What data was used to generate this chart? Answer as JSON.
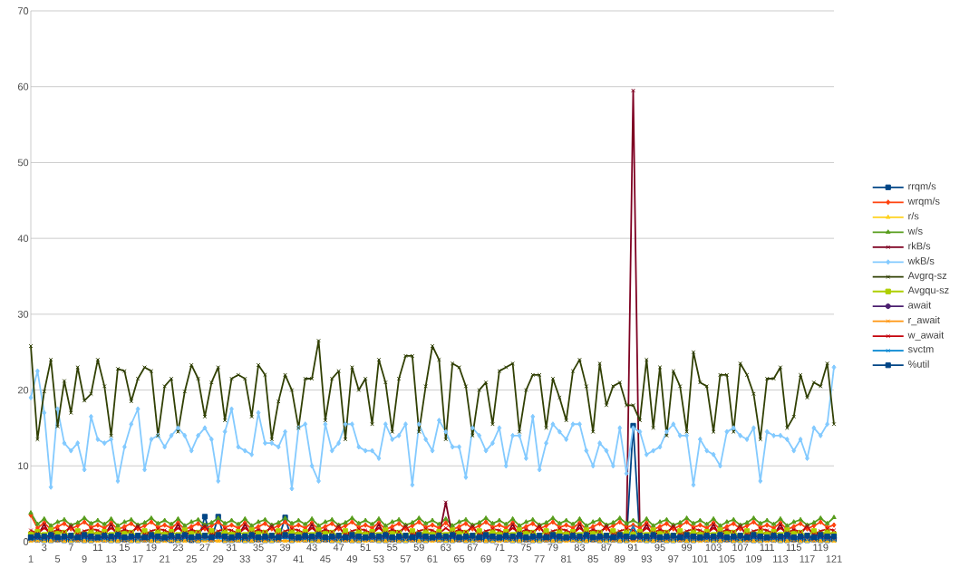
{
  "chart_data": {
    "type": "line",
    "legend": "right",
    "grid": "y",
    "ylim": [
      0,
      70
    ],
    "yticks": [
      0,
      10,
      20,
      30,
      40,
      50,
      60,
      70
    ],
    "categories": [
      "1",
      null,
      "3",
      null,
      "5",
      null,
      "7",
      null,
      "9",
      null,
      "11",
      null,
      "13",
      null,
      "15",
      null,
      "17",
      null,
      "19",
      null,
      "21",
      null,
      "23",
      null,
      "25",
      null,
      "27",
      null,
      "29",
      null,
      "31",
      null,
      "33",
      null,
      "35",
      null,
      "37",
      null,
      "39",
      null,
      "41",
      null,
      "43",
      null,
      "45",
      null,
      "47",
      null,
      "49",
      null,
      "51",
      null,
      "53",
      null,
      "55",
      null,
      "57",
      null,
      "59",
      null,
      "61",
      null,
      "63",
      null,
      "65",
      null,
      "67",
      null,
      "69",
      null,
      "71",
      null,
      "73",
      null,
      "75",
      null,
      "77",
      null,
      "79",
      null,
      "81",
      null,
      "83",
      null,
      "85",
      null,
      "87",
      null,
      "89",
      null,
      "91",
      null,
      "93",
      null,
      "95",
      null,
      "97",
      null,
      "99",
      null,
      "101",
      null,
      "103",
      null,
      "105",
      null,
      "107",
      null,
      "109",
      null,
      "111",
      null,
      "113",
      null,
      "115",
      null,
      "117",
      null,
      "119",
      null,
      "121"
    ],
    "series": [
      {
        "name": "rrqm/s",
        "color": "#004586",
        "marker": "square",
        "values": [
          0.5,
          0.3,
          0.2,
          0.2,
          0.3,
          0.2,
          0.2,
          0.3,
          0.2,
          0.2,
          0.5,
          0.3,
          0.2,
          0.2,
          0.3,
          0.2,
          0.2,
          0.3,
          0.2,
          0.2,
          0.3,
          0.2,
          0.2,
          0.3,
          0.2,
          0.2,
          3.3,
          0.3,
          3.3,
          0.2,
          0.2,
          0.3,
          0.2,
          0.2,
          0.3,
          0.2,
          0.2,
          0.3,
          3.2,
          0.2,
          0.5,
          0.3,
          0.2,
          0.2,
          0.3,
          0.2,
          0.2,
          0.3,
          0.2,
          0.2,
          0.5,
          0.3,
          0.2,
          0.2,
          0.3,
          0.2,
          0.2,
          0.3,
          0.2,
          0.2,
          0.5,
          0.3,
          0.2,
          0.2,
          0.3,
          0.2,
          0.2,
          0.3,
          0.2,
          0.2,
          0.5,
          0.3,
          0.2,
          0.2,
          0.3,
          0.2,
          0.2,
          0.3,
          0.2,
          0.2,
          0.5,
          0.3,
          0.2,
          0.2,
          0.3,
          0.2,
          0.2,
          0.3,
          0.2,
          0.2,
          15.3,
          0.3,
          0.2,
          0.2,
          0.3,
          0.2,
          0.2,
          0.3,
          0.2,
          0.2,
          0.5,
          0.3,
          0.2,
          0.2,
          0.3,
          0.2,
          0.2,
          0.3,
          0.2,
          0.2,
          0.5,
          0.3,
          0.2,
          0.2,
          0.3,
          0.2,
          0.2,
          0.3,
          0.2,
          0.2,
          0.3
        ]
      },
      {
        "name": "wrqm/s",
        "color": "#ff420e",
        "marker": "diamond",
        "values": [
          3.5,
          1.8,
          2.5,
          1.6,
          2.0,
          2.4,
          1.7,
          2.1,
          2.6,
          1.9,
          2.2,
          1.8,
          2.5,
          1.6,
          2.0,
          2.4,
          1.7,
          2.1,
          2.6,
          1.9,
          2.2,
          1.8,
          2.5,
          1.6,
          2.0,
          2.4,
          1.7,
          2.1,
          2.6,
          1.9,
          2.2,
          1.8,
          2.5,
          1.6,
          2.0,
          2.4,
          1.7,
          2.1,
          2.6,
          1.9,
          2.2,
          1.8,
          2.5,
          1.6,
          2.0,
          2.4,
          1.7,
          2.1,
          2.6,
          1.9,
          2.2,
          1.8,
          2.5,
          1.6,
          2.0,
          2.4,
          1.7,
          2.1,
          2.6,
          1.9,
          2.2,
          1.8,
          2.5,
          1.6,
          2.0,
          2.4,
          1.7,
          2.1,
          2.6,
          1.9,
          2.2,
          1.8,
          2.5,
          1.6,
          2.0,
          2.4,
          1.7,
          2.1,
          2.6,
          1.9,
          2.2,
          1.8,
          2.5,
          1.6,
          2.0,
          2.4,
          1.7,
          2.1,
          2.6,
          1.9,
          2.2,
          1.8,
          2.5,
          1.6,
          2.0,
          2.4,
          1.7,
          2.1,
          2.6,
          1.9,
          2.2,
          1.8,
          2.5,
          1.6,
          2.0,
          2.4,
          1.7,
          2.1,
          2.6,
          1.9,
          2.2,
          1.8,
          2.5,
          1.6,
          2.0,
          2.4,
          1.7,
          2.1,
          2.6,
          1.9,
          2.2
        ]
      },
      {
        "name": "r/s",
        "color": "#ffd320",
        "marker": "triangle",
        "values": [
          0.1,
          0.2,
          0.1,
          0.1,
          0.3,
          0.1,
          0.1,
          0.2,
          0.1,
          0.1,
          0.1,
          0.2,
          0.1,
          0.1,
          0.3,
          0.1,
          0.1,
          0.2,
          0.1,
          0.1,
          0.1,
          0.2,
          0.1,
          0.1,
          0.3,
          0.1,
          0.1,
          0.2,
          0.1,
          0.1,
          0.1,
          0.2,
          0.1,
          0.1,
          0.3,
          0.1,
          0.1,
          0.2,
          0.1,
          0.1,
          0.1,
          0.2,
          0.1,
          0.1,
          0.3,
          0.1,
          0.1,
          0.2,
          0.1,
          0.1,
          0.1,
          0.2,
          0.1,
          0.1,
          0.3,
          0.1,
          0.1,
          0.2,
          0.1,
          0.1,
          0.1,
          0.2,
          0.1,
          0.1,
          0.3,
          0.1,
          0.1,
          0.2,
          0.1,
          0.1,
          0.1,
          0.2,
          0.1,
          0.1,
          0.3,
          0.1,
          0.1,
          0.2,
          0.1,
          0.1,
          0.1,
          0.2,
          0.1,
          0.1,
          0.3,
          0.1,
          0.1,
          0.2,
          0.1,
          0.1,
          0.1,
          0.2,
          0.1,
          0.1,
          0.3,
          0.1,
          0.1,
          0.2,
          0.1,
          0.1,
          0.1,
          0.2,
          0.1,
          0.1,
          0.3,
          0.1,
          0.1,
          0.2,
          0.1,
          0.1,
          0.1,
          0.2,
          0.1,
          0.1,
          0.3,
          0.1,
          0.1,
          0.2,
          0.1,
          0.1,
          0.1
        ]
      },
      {
        "name": "w/s",
        "color": "#579d1c",
        "marker": "triangle",
        "values": [
          3.8,
          2.3,
          3.0,
          2.1,
          2.6,
          2.9,
          2.2,
          2.5,
          3.1,
          2.4,
          2.8,
          2.3,
          3.0,
          2.1,
          2.6,
          2.9,
          2.2,
          2.5,
          3.1,
          2.4,
          2.8,
          2.3,
          3.0,
          2.1,
          2.6,
          2.9,
          2.2,
          2.5,
          3.1,
          2.4,
          2.8,
          2.3,
          3.0,
          2.1,
          2.6,
          2.9,
          2.2,
          2.5,
          3.1,
          2.4,
          2.8,
          2.3,
          3.0,
          2.1,
          2.6,
          2.9,
          2.2,
          2.5,
          3.1,
          2.4,
          2.8,
          2.3,
          3.0,
          2.1,
          2.6,
          2.9,
          2.2,
          2.5,
          3.1,
          2.4,
          2.8,
          2.3,
          3.0,
          2.1,
          2.6,
          2.9,
          2.2,
          2.5,
          3.1,
          2.4,
          2.8,
          2.3,
          3.0,
          2.1,
          2.6,
          2.9,
          2.2,
          2.5,
          3.1,
          2.4,
          2.8,
          2.3,
          3.0,
          2.1,
          2.6,
          2.9,
          2.2,
          2.5,
          3.1,
          2.4,
          2.8,
          2.3,
          3.0,
          2.1,
          2.6,
          2.9,
          2.2,
          2.5,
          3.1,
          2.4,
          2.8,
          2.3,
          3.0,
          2.1,
          2.6,
          2.9,
          2.2,
          2.5,
          3.1,
          2.4,
          2.8,
          2.3,
          3.0,
          2.1,
          2.6,
          2.9,
          2.2,
          2.5,
          3.1,
          2.4,
          3.2
        ]
      },
      {
        "name": "rkB/s",
        "color": "#7e0021",
        "marker": "cross",
        "values": [
          1.2,
          0.8,
          2.3,
          0.6,
          1.5,
          1.0,
          2.1,
          0.7,
          1.3,
          0.9,
          1.2,
          0.8,
          2.3,
          0.6,
          1.5,
          1.0,
          2.1,
          0.7,
          1.3,
          0.9,
          1.2,
          0.8,
          2.3,
          0.6,
          1.5,
          1.0,
          2.1,
          0.7,
          1.3,
          0.9,
          1.2,
          0.8,
          2.3,
          0.6,
          1.5,
          1.0,
          2.1,
          0.7,
          1.3,
          0.9,
          1.2,
          0.8,
          2.3,
          0.6,
          1.5,
          1.0,
          2.1,
          0.7,
          1.3,
          0.9,
          1.2,
          0.8,
          2.3,
          0.6,
          1.5,
          1.0,
          2.1,
          0.7,
          1.3,
          0.9,
          1.2,
          0.8,
          5.2,
          0.6,
          1.5,
          1.0,
          2.1,
          0.7,
          1.3,
          0.9,
          1.2,
          0.8,
          2.3,
          0.6,
          1.5,
          1.0,
          2.1,
          0.7,
          1.3,
          0.9,
          1.2,
          0.8,
          2.3,
          0.6,
          1.5,
          1.0,
          2.1,
          0.7,
          1.3,
          0.9,
          59.5,
          0.8,
          2.3,
          0.6,
          1.5,
          1.0,
          2.1,
          0.7,
          1.3,
          0.9,
          1.2,
          0.8,
          2.3,
          0.6,
          1.5,
          1.0,
          2.1,
          0.7,
          1.3,
          0.9,
          1.2,
          0.8,
          2.3,
          0.6,
          1.5,
          1.0,
          2.1,
          0.7,
          1.3,
          0.9,
          1.2
        ]
      },
      {
        "name": "wkB/s",
        "color": "#83caff",
        "marker": "diamond",
        "values": [
          19,
          22.5,
          17,
          7.2,
          17.5,
          13,
          12,
          13,
          9.5,
          16.5,
          13.5,
          13,
          13.5,
          8,
          12.5,
          15.5,
          17.5,
          9.5,
          13.5,
          14,
          12.5,
          14,
          15,
          14,
          12,
          14,
          15,
          13.5,
          8,
          14.5,
          17.5,
          12.5,
          12,
          11.5,
          17,
          13,
          13,
          12.5,
          14.5,
          7,
          15,
          15.5,
          10,
          8,
          15.5,
          12,
          13,
          15.5,
          15.5,
          12.5,
          12,
          12,
          11,
          15.5,
          13.5,
          14,
          15.5,
          7.5,
          15.5,
          13.5,
          12,
          16,
          14.5,
          12.5,
          12.5,
          8.5,
          15,
          14,
          12,
          13,
          15,
          10,
          14,
          14,
          11,
          16.5,
          9.5,
          13,
          15.5,
          14.5,
          13.5,
          15.5,
          15.5,
          12,
          10,
          13,
          12,
          10,
          15,
          9,
          15,
          14.5,
          11.5,
          12,
          12.5,
          14.5,
          15.5,
          14,
          14,
          7.5,
          13.5,
          12,
          11.5,
          10,
          14.5,
          15,
          14,
          13.5,
          15,
          8,
          14.5,
          14,
          14,
          13.5,
          12,
          13.5,
          11,
          15,
          14,
          15.5,
          23
        ]
      },
      {
        "name": "Avgrq-sz",
        "color": "#314004",
        "marker": "cross",
        "values": [
          25.8,
          13.5,
          19.8,
          24,
          15.2,
          21.2,
          17,
          23,
          18.6,
          19.5,
          24,
          20.5,
          14,
          22.8,
          22.5,
          18.5,
          21.5,
          23,
          22.5,
          14,
          20.5,
          21.5,
          14.5,
          19.8,
          23.3,
          21.5,
          16.5,
          21,
          23,
          16,
          21.5,
          22,
          21.5,
          16.5,
          23.3,
          22,
          13.5,
          18.5,
          22,
          20,
          15,
          21.5,
          21.5,
          26.5,
          16,
          21.5,
          22.5,
          13.5,
          23,
          20,
          21.5,
          15.5,
          24,
          21,
          14.5,
          21.5,
          24.5,
          24.5,
          14.5,
          20.5,
          25.8,
          24,
          13.5,
          23.5,
          23,
          20.5,
          14,
          20,
          21,
          15.5,
          22.5,
          23,
          23.5,
          14.5,
          20,
          22,
          22,
          15,
          21.5,
          19,
          16,
          22.5,
          24,
          20.5,
          14.5,
          23.5,
          18,
          20.5,
          21,
          18,
          18,
          16,
          24,
          15,
          23,
          14,
          22.5,
          20.5,
          14.5,
          25,
          21,
          20.5,
          14.5,
          22,
          22,
          14.5,
          23.5,
          22,
          19.5,
          13.5,
          21.5,
          21.5,
          23,
          15,
          16.5,
          22,
          19,
          21,
          20.5,
          23.5,
          15.5
        ]
      },
      {
        "name": "Avgqu-sz",
        "color": "#aecf00",
        "marker": "square",
        "values": [
          1.0,
          1.3,
          0.9,
          1.5,
          1.1,
          1.2,
          0.8,
          1.4,
          1.0,
          1.3,
          1.0,
          1.3,
          0.9,
          1.5,
          1.1,
          1.2,
          0.8,
          1.4,
          1.0,
          1.3,
          1.0,
          1.3,
          0.9,
          1.5,
          1.1,
          1.2,
          0.8,
          1.4,
          1.0,
          1.3,
          1.0,
          1.3,
          0.9,
          1.5,
          1.1,
          1.2,
          0.8,
          1.4,
          1.0,
          1.3,
          1.0,
          1.3,
          0.9,
          1.5,
          1.1,
          1.2,
          0.8,
          1.4,
          1.0,
          1.3,
          1.0,
          1.3,
          0.9,
          1.5,
          1.1,
          1.2,
          0.8,
          1.4,
          1.0,
          1.3,
          1.0,
          1.3,
          0.9,
          1.5,
          1.1,
          1.2,
          0.8,
          1.4,
          1.0,
          1.3,
          1.0,
          1.3,
          0.9,
          1.5,
          1.1,
          1.2,
          0.8,
          1.4,
          1.0,
          1.3,
          1.0,
          1.3,
          0.9,
          1.5,
          1.1,
          1.2,
          0.8,
          1.4,
          1.0,
          1.3,
          1.0,
          1.3,
          0.9,
          1.5,
          1.1,
          1.2,
          0.8,
          1.4,
          1.0,
          1.3,
          1.0,
          1.3,
          0.9,
          1.5,
          1.1,
          1.2,
          0.8,
          1.4,
          1.0,
          1.3,
          1.0,
          1.3,
          0.9,
          1.5,
          1.1,
          1.2,
          0.8,
          1.4,
          1.0,
          1.3,
          1.0
        ]
      },
      {
        "name": "await",
        "color": "#4b1f6f",
        "marker": "circle",
        "values": [
          0.4,
          0.6,
          0.5,
          0.7,
          0.4,
          0.5,
          0.6,
          0.4,
          0.7,
          0.5,
          0.4,
          0.6,
          0.5,
          0.7,
          0.4,
          0.5,
          0.6,
          0.4,
          0.7,
          0.5,
          0.4,
          0.6,
          0.5,
          0.7,
          0.4,
          0.5,
          0.6,
          0.4,
          0.7,
          0.5,
          0.4,
          0.6,
          0.5,
          0.7,
          0.4,
          0.5,
          0.6,
          0.4,
          0.7,
          0.5,
          0.4,
          0.6,
          0.5,
          0.7,
          0.4,
          0.5,
          0.6,
          0.4,
          0.7,
          0.5,
          0.4,
          0.6,
          0.5,
          0.7,
          0.4,
          0.5,
          0.6,
          0.4,
          0.7,
          0.5,
          0.4,
          0.6,
          0.5,
          0.7,
          0.4,
          0.5,
          0.6,
          0.4,
          0.7,
          0.5,
          0.4,
          0.6,
          0.5,
          0.7,
          0.4,
          0.5,
          0.6,
          0.4,
          0.7,
          0.5,
          0.4,
          0.6,
          0.5,
          0.7,
          0.4,
          0.5,
          0.6,
          0.4,
          0.7,
          0.5,
          0.4,
          0.6,
          0.5,
          0.7,
          0.4,
          0.5,
          0.6,
          0.4,
          0.7,
          0.5,
          0.4,
          0.6,
          0.5,
          0.7,
          0.4,
          0.5,
          0.6,
          0.4,
          0.7,
          0.5,
          0.4,
          0.6,
          0.5,
          0.7,
          0.4,
          0.5,
          0.6,
          0.4,
          0.7,
          0.5,
          0.5
        ]
      },
      {
        "name": "r_await",
        "color": "#ff950e",
        "marker": "cross",
        "values": [
          0.1,
          0.1,
          0.2,
          0.1,
          0.1,
          0.1,
          0.2,
          0.1,
          0.1,
          0.1,
          0.1,
          0.1,
          0.2,
          0.1,
          0.1,
          0.1,
          0.2,
          0.1,
          0.1,
          0.1,
          0.1,
          0.1,
          0.2,
          0.1,
          0.1,
          0.1,
          0.2,
          0.1,
          0.1,
          0.1,
          0.1,
          0.1,
          0.2,
          0.1,
          0.1,
          0.1,
          0.2,
          0.1,
          0.1,
          0.1,
          0.1,
          0.1,
          0.2,
          0.1,
          0.1,
          0.1,
          0.2,
          0.1,
          0.1,
          0.1,
          0.1,
          0.1,
          0.2,
          0.1,
          0.1,
          0.1,
          0.2,
          0.1,
          0.1,
          0.1,
          0.1,
          0.1,
          0.2,
          0.1,
          0.1,
          0.1,
          0.2,
          0.1,
          0.1,
          0.1,
          0.1,
          0.1,
          0.2,
          0.1,
          0.1,
          0.1,
          0.2,
          0.1,
          0.1,
          0.1,
          0.1,
          0.1,
          0.2,
          0.1,
          0.1,
          0.1,
          0.2,
          0.1,
          0.1,
          0.1,
          0.1,
          0.1,
          0.2,
          0.1,
          0.1,
          0.1,
          0.2,
          0.1,
          0.1,
          0.1,
          0.1,
          0.1,
          0.2,
          0.1,
          0.1,
          0.1,
          0.2,
          0.1,
          0.1,
          0.1,
          0.1,
          0.1,
          0.2,
          0.1,
          0.1,
          0.1,
          0.2,
          0.1,
          0.1,
          0.1,
          0.1
        ]
      },
      {
        "name": "w_await",
        "color": "#c5000b",
        "marker": "cross",
        "values": [
          1.5,
          1.1,
          1.8,
          1.2,
          1.6,
          1.3,
          1.9,
          1.0,
          1.4,
          1.7,
          1.5,
          1.1,
          1.8,
          1.2,
          1.6,
          1.3,
          1.9,
          1.0,
          1.4,
          1.7,
          1.5,
          1.1,
          1.8,
          1.2,
          1.6,
          1.3,
          1.9,
          1.0,
          1.4,
          1.7,
          1.5,
          1.1,
          1.8,
          1.2,
          1.6,
          1.3,
          1.9,
          1.0,
          1.4,
          1.7,
          1.5,
          1.1,
          1.8,
          1.2,
          1.6,
          1.3,
          1.9,
          1.0,
          1.4,
          1.7,
          1.5,
          1.1,
          1.8,
          1.2,
          1.6,
          1.3,
          1.9,
          1.0,
          1.4,
          1.7,
          1.5,
          1.1,
          1.8,
          1.2,
          1.6,
          1.3,
          1.9,
          1.0,
          1.4,
          1.7,
          1.5,
          1.1,
          1.8,
          1.2,
          1.6,
          1.3,
          1.9,
          1.0,
          1.4,
          1.7,
          1.5,
          1.1,
          1.8,
          1.2,
          1.6,
          1.3,
          1.9,
          1.0,
          1.4,
          1.7,
          1.5,
          1.1,
          1.8,
          1.2,
          1.6,
          1.3,
          1.9,
          1.0,
          1.4,
          1.7,
          1.5,
          1.1,
          1.8,
          1.2,
          1.6,
          1.3,
          1.9,
          1.0,
          1.4,
          1.7,
          1.5,
          1.1,
          1.8,
          1.2,
          1.6,
          1.3,
          1.9,
          1.0,
          1.4,
          1.7,
          1.5
        ]
      },
      {
        "name": "svctm",
        "color": "#0084d1",
        "marker": "cross",
        "values": [
          0.3,
          0.4,
          0.3,
          0.5,
          0.3,
          0.4,
          0.3,
          0.4,
          0.5,
          0.3,
          0.3,
          0.4,
          0.3,
          0.5,
          0.3,
          0.4,
          0.3,
          0.4,
          0.5,
          0.3,
          0.3,
          0.4,
          0.3,
          0.5,
          0.3,
          0.4,
          0.3,
          0.4,
          0.5,
          0.3,
          0.3,
          0.4,
          0.3,
          0.5,
          0.3,
          0.4,
          0.3,
          0.4,
          0.5,
          0.3,
          0.3,
          0.4,
          0.3,
          0.5,
          0.3,
          0.4,
          0.3,
          0.4,
          0.5,
          0.3,
          0.3,
          0.4,
          0.3,
          0.5,
          0.3,
          0.4,
          0.3,
          0.4,
          0.5,
          0.3,
          0.3,
          0.4,
          0.3,
          0.5,
          0.3,
          0.4,
          0.3,
          0.4,
          0.5,
          0.3,
          0.3,
          0.4,
          0.3,
          0.5,
          0.3,
          0.4,
          0.3,
          0.4,
          0.5,
          0.3,
          0.3,
          0.4,
          0.3,
          0.5,
          0.3,
          0.4,
          0.3,
          0.4,
          0.5,
          0.3,
          2.0,
          0.4,
          0.3,
          0.5,
          0.3,
          0.4,
          0.3,
          0.4,
          0.5,
          0.3,
          0.3,
          0.4,
          0.3,
          0.5,
          0.3,
          0.4,
          0.3,
          0.4,
          0.5,
          0.3,
          0.3,
          0.4,
          0.3,
          0.5,
          0.3,
          0.4,
          0.3,
          0.4,
          0.5,
          0.3,
          0.3
        ]
      },
      {
        "name": "%util",
        "color": "#004586",
        "marker": "square",
        "values": [
          0.6,
          0.8,
          0.7,
          0.9,
          0.6,
          0.7,
          0.8,
          0.6,
          0.9,
          0.7,
          0.6,
          0.8,
          0.7,
          0.9,
          0.6,
          0.7,
          0.8,
          0.6,
          0.9,
          0.7,
          0.6,
          0.8,
          0.7,
          0.9,
          0.6,
          0.7,
          0.8,
          0.6,
          0.9,
          0.7,
          0.6,
          0.8,
          0.7,
          0.9,
          0.6,
          0.7,
          0.8,
          0.6,
          0.9,
          0.7,
          0.6,
          0.8,
          0.7,
          0.9,
          0.6,
          0.7,
          0.8,
          0.6,
          0.9,
          0.7,
          0.6,
          0.8,
          0.7,
          0.9,
          0.6,
          0.7,
          0.8,
          0.6,
          0.9,
          0.7,
          0.6,
          0.8,
          0.7,
          0.9,
          0.6,
          0.7,
          0.8,
          0.6,
          0.9,
          0.7,
          0.6,
          0.8,
          0.7,
          0.9,
          0.6,
          0.7,
          0.8,
          0.6,
          0.9,
          0.7,
          0.6,
          0.8,
          0.7,
          0.9,
          0.6,
          0.7,
          0.8,
          0.6,
          0.9,
          0.7,
          0.6,
          0.8,
          0.7,
          0.9,
          0.6,
          0.7,
          0.8,
          0.6,
          0.9,
          0.7,
          0.6,
          0.8,
          0.7,
          0.9,
          0.6,
          0.7,
          0.8,
          0.6,
          0.9,
          0.7,
          0.6,
          0.8,
          0.7,
          0.9,
          0.6,
          0.7,
          0.8,
          0.6,
          0.9,
          0.7,
          0.7
        ]
      }
    ]
  }
}
